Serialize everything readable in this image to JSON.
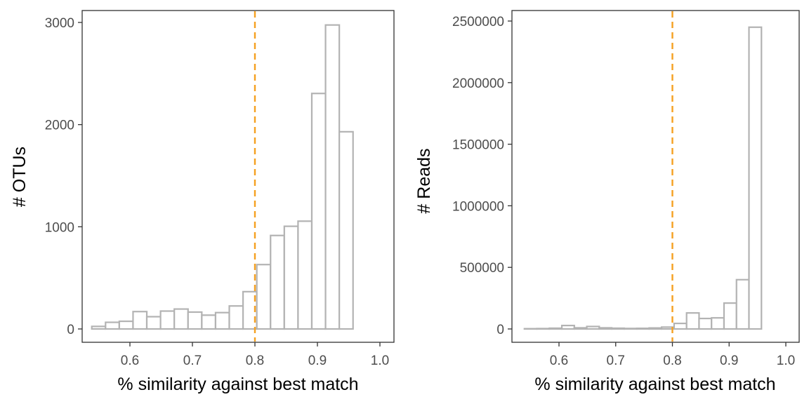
{
  "chart_data": [
    {
      "type": "bar",
      "title": "",
      "xlabel": "% similarity against best match",
      "ylabel": "# OTUs",
      "xlim": [
        0.54,
        1.0
      ],
      "ylim": [
        0,
        3000
      ],
      "xticks": [
        0.6,
        0.7,
        0.8,
        0.9,
        1.0
      ],
      "xtick_labels": [
        "0.6",
        "0.7",
        "0.8",
        "0.9",
        "1.0"
      ],
      "yticks": [
        0,
        1000,
        2000,
        3000
      ],
      "ytick_labels": [
        "0",
        "1000",
        "2000",
        "3000"
      ],
      "bin_width": 0.022,
      "bins_start": [
        0.539,
        0.561,
        0.583,
        0.605,
        0.627,
        0.649,
        0.671,
        0.693,
        0.715,
        0.737,
        0.759,
        0.781,
        0.803,
        0.825,
        0.847,
        0.869,
        0.891,
        0.913,
        0.935,
        0.957,
        0.979
      ],
      "values": [
        25,
        65,
        75,
        170,
        120,
        175,
        195,
        165,
        135,
        160,
        225,
        365,
        630,
        915,
        1005,
        1055,
        2305,
        2975,
        1930,
        0,
        0
      ],
      "reference_line": {
        "x": 0.8,
        "style": "dashed",
        "color": "#f5a020"
      },
      "bar_outline_color": "#b3b3b3",
      "grid": false,
      "legend": "none"
    },
    {
      "type": "bar",
      "title": "",
      "xlabel": "% similarity against best match",
      "ylabel": "# Reads",
      "xlim": [
        0.54,
        1.0
      ],
      "ylim": [
        0,
        2500000
      ],
      "xticks": [
        0.6,
        0.7,
        0.8,
        0.9,
        1.0
      ],
      "xtick_labels": [
        "0.6",
        "0.7",
        "0.8",
        "0.9",
        "1.0"
      ],
      "yticks": [
        0,
        500000,
        1000000,
        1500000,
        2000000,
        2500000
      ],
      "ytick_labels": [
        "0",
        "500000",
        "1000000",
        "1500000",
        "2000000",
        "2500000"
      ],
      "bin_width": 0.022,
      "bins_start": [
        0.539,
        0.561,
        0.583,
        0.605,
        0.627,
        0.649,
        0.671,
        0.693,
        0.715,
        0.737,
        0.759,
        0.781,
        0.803,
        0.825,
        0.847,
        0.869,
        0.891,
        0.913,
        0.935,
        0.957,
        0.979
      ],
      "values": [
        2000,
        3000,
        6000,
        28000,
        9000,
        20000,
        9000,
        6000,
        4000,
        5000,
        8000,
        15000,
        45000,
        130000,
        85000,
        90000,
        210000,
        400000,
        2450000,
        0,
        0
      ],
      "reference_line": {
        "x": 0.8,
        "style": "dashed",
        "color": "#f5a020"
      },
      "bar_outline_color": "#b3b3b3",
      "grid": false,
      "legend": "none"
    }
  ]
}
